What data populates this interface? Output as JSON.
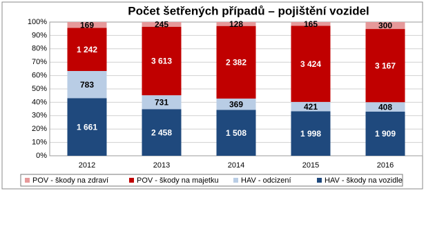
{
  "chart_data": {
    "type": "bar",
    "stacking": "percent",
    "title": "Počet šetřených případů – pojištění vozidel",
    "categories": [
      "2012",
      "2013",
      "2014",
      "2015",
      "2016"
    ],
    "series": [
      {
        "name": "POV - škody na zdraví",
        "color": "#e6999a",
        "values": [
          169,
          245,
          128,
          165,
          300
        ],
        "label_color": "#000000"
      },
      {
        "name": "POV - škody na majetku",
        "color": "#c00000",
        "values": [
          1242,
          3613,
          2382,
          3424,
          3167
        ],
        "value_labels": [
          "1 242",
          "3 613",
          "2 382",
          "3 424",
          "3 167"
        ],
        "label_color": "#ffffff"
      },
      {
        "name": "HAV - odcizení",
        "color": "#b9cde5",
        "values": [
          783,
          731,
          369,
          421,
          408
        ],
        "label_color": "#000000"
      },
      {
        "name": "HAV - škody na vozidle",
        "color": "#1f497d",
        "values": [
          1661,
          2458,
          1508,
          1998,
          1909
        ],
        "value_labels": [
          "1 661",
          "2 458",
          "1 508",
          "1 998",
          "1 909"
        ],
        "label_color": "#ffffff"
      }
    ],
    "ylim": [
      0,
      100
    ],
    "yticks": [
      {
        "value": 0,
        "label": "0%"
      },
      {
        "value": 10,
        "label": "10%"
      },
      {
        "value": 20,
        "label": "20%"
      },
      {
        "value": 30,
        "label": "30%"
      },
      {
        "value": 40,
        "label": "40%"
      },
      {
        "value": 50,
        "label": "50%"
      },
      {
        "value": 60,
        "label": "60%"
      },
      {
        "value": 70,
        "label": "70%"
      },
      {
        "value": 80,
        "label": "80%"
      },
      {
        "value": 90,
        "label": "90%"
      },
      {
        "value": 100,
        "label": "100%"
      }
    ],
    "grid": true,
    "legend": "bottom"
  }
}
